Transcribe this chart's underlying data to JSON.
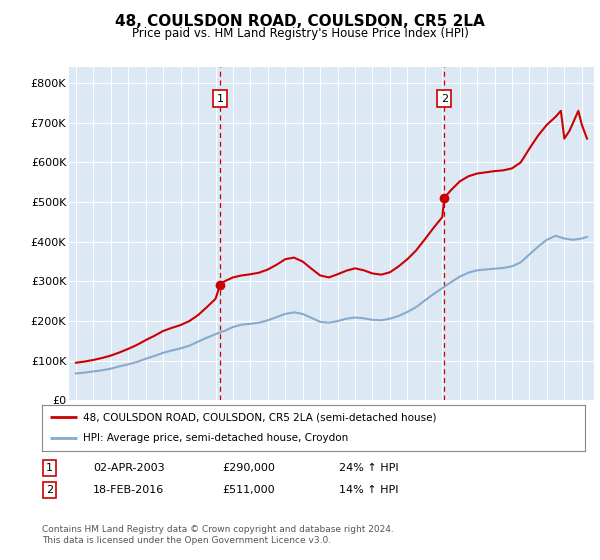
{
  "title": "48, COULSDON ROAD, COULSDON, CR5 2LA",
  "subtitle": "Price paid vs. HM Land Registry's House Price Index (HPI)",
  "plot_bg_color": "#dce9f5",
  "ylabel_ticks": [
    "£0",
    "£100K",
    "£200K",
    "£300K",
    "£400K",
    "£500K",
    "£600K",
    "£700K",
    "£800K"
  ],
  "ytick_values": [
    0,
    100000,
    200000,
    300000,
    400000,
    500000,
    600000,
    700000,
    800000
  ],
  "ylim": [
    0,
    840000
  ],
  "xlim_start": 1994.6,
  "xlim_end": 2024.7,
  "sale1_date": 2003.25,
  "sale1_price": 290000,
  "sale2_date": 2016.12,
  "sale2_price": 511000,
  "legend_line1": "48, COULSDON ROAD, COULSDON, CR5 2LA (semi-detached house)",
  "legend_line2": "HPI: Average price, semi-detached house, Croydon",
  "annotation1": [
    "1",
    "02-APR-2003",
    "£290,000",
    "24% ↑ HPI"
  ],
  "annotation2": [
    "2",
    "18-FEB-2016",
    "£511,000",
    "14% ↑ HPI"
  ],
  "footer": "Contains HM Land Registry data © Crown copyright and database right 2024.\nThis data is licensed under the Open Government Licence v3.0.",
  "line_red": "#cc0000",
  "line_blue": "#88aacc",
  "dashed_red": "#cc0000",
  "marker_color": "#cc0000",
  "years_hpi": [
    1995,
    1995.5,
    1996,
    1996.5,
    1997,
    1997.5,
    1998,
    1998.5,
    1999,
    1999.5,
    2000,
    2000.5,
    2001,
    2001.5,
    2002,
    2002.5,
    2003,
    2003.5,
    2004,
    2004.5,
    2005,
    2005.5,
    2006,
    2006.5,
    2007,
    2007.5,
    2008,
    2008.5,
    2009,
    2009.5,
    2010,
    2010.5,
    2011,
    2011.5,
    2012,
    2012.5,
    2013,
    2013.5,
    2014,
    2014.5,
    2015,
    2015.5,
    2016,
    2016.5,
    2017,
    2017.5,
    2018,
    2018.5,
    2019,
    2019.5,
    2020,
    2020.5,
    2021,
    2021.5,
    2022,
    2022.5,
    2023,
    2023.5,
    2024,
    2024.3
  ],
  "hpi_values": [
    68000,
    70000,
    73000,
    76000,
    80000,
    86000,
    91000,
    97000,
    105000,
    112000,
    120000,
    126000,
    131000,
    138000,
    148000,
    158000,
    167000,
    175000,
    185000,
    191000,
    193000,
    196000,
    202000,
    210000,
    218000,
    222000,
    218000,
    208000,
    198000,
    196000,
    200000,
    206000,
    209000,
    207000,
    203000,
    202000,
    206000,
    213000,
    223000,
    235000,
    252000,
    268000,
    283000,
    298000,
    312000,
    322000,
    328000,
    330000,
    332000,
    334000,
    338000,
    348000,
    368000,
    388000,
    405000,
    415000,
    408000,
    405000,
    408000,
    412000
  ],
  "years_red": [
    1995,
    1995.5,
    1996,
    1996.5,
    1997,
    1997.5,
    1998,
    1998.5,
    1999,
    1999.5,
    2000,
    2000.5,
    2001,
    2001.5,
    2002,
    2002.5,
    2003,
    2003.25,
    2003.5,
    2004,
    2004.5,
    2005,
    2005.5,
    2006,
    2006.5,
    2007,
    2007.5,
    2008,
    2008.5,
    2009,
    2009.5,
    2010,
    2010.5,
    2011,
    2011.5,
    2012,
    2012.5,
    2013,
    2013.5,
    2014,
    2014.5,
    2015,
    2015.5,
    2016,
    2016.12,
    2016.5,
    2017,
    2017.5,
    2018,
    2018.5,
    2019,
    2019.5,
    2020,
    2020.5,
    2021,
    2021.5,
    2022,
    2022.5,
    2022.8,
    2023,
    2023.3,
    2023.6,
    2023.8,
    2024,
    2024.3
  ],
  "red_values": [
    95000,
    98000,
    102000,
    107000,
    113000,
    121000,
    130000,
    140000,
    152000,
    163000,
    175000,
    183000,
    190000,
    200000,
    215000,
    235000,
    256000,
    290000,
    300000,
    310000,
    315000,
    318000,
    322000,
    330000,
    342000,
    356000,
    360000,
    350000,
    332000,
    315000,
    310000,
    318000,
    327000,
    333000,
    328000,
    320000,
    317000,
    323000,
    338000,
    356000,
    378000,
    406000,
    435000,
    462000,
    511000,
    530000,
    552000,
    565000,
    572000,
    575000,
    578000,
    580000,
    585000,
    600000,
    635000,
    668000,
    695000,
    715000,
    730000,
    660000,
    680000,
    710000,
    730000,
    695000,
    660000
  ]
}
